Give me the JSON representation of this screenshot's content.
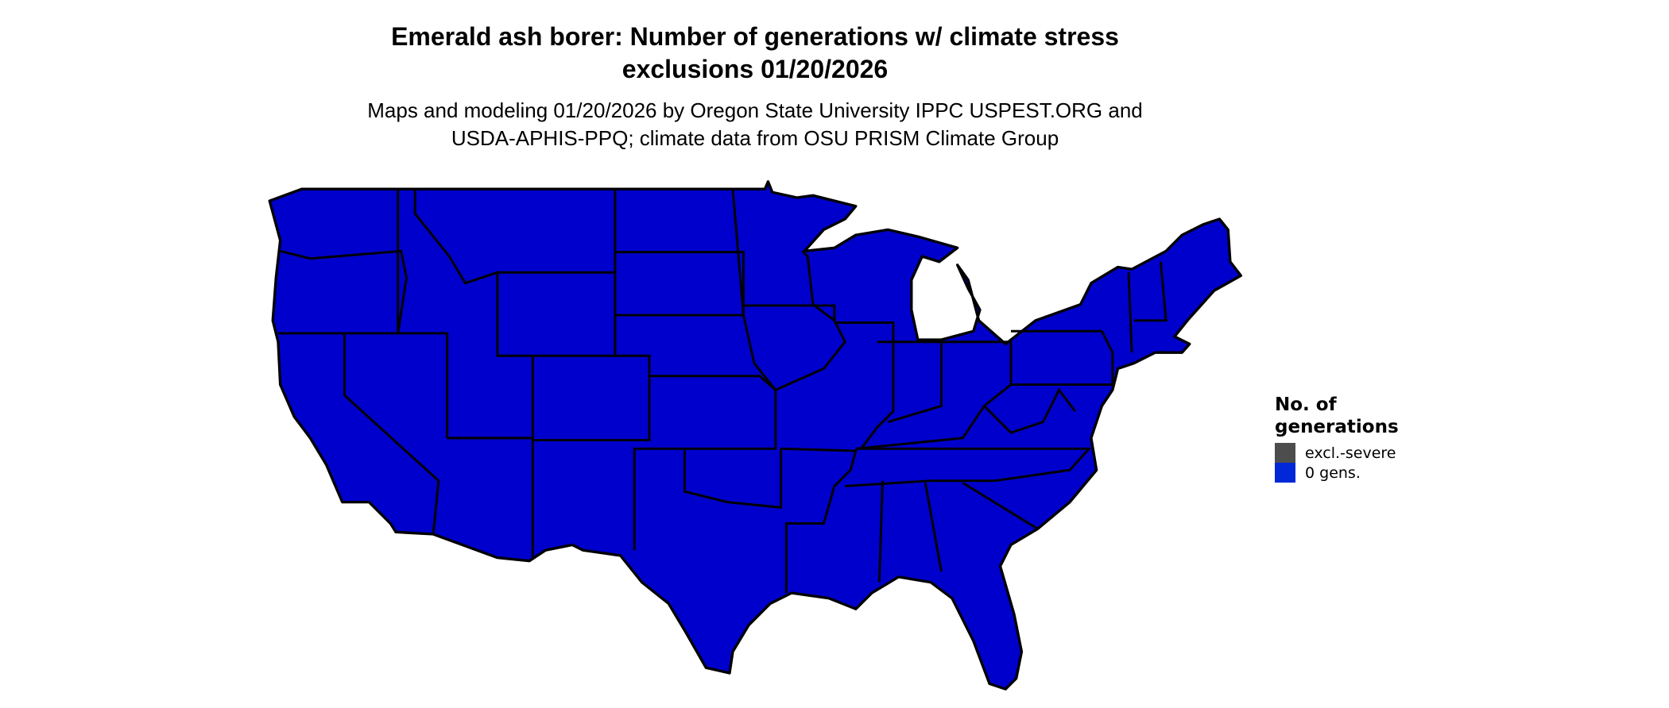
{
  "title": {
    "line1": "Emerald ash borer: Number of generations w/ climate stress",
    "line2": "exclusions 01/20/2026"
  },
  "subtitle": {
    "line1": "Maps and modeling 01/20/2026 by Oregon State University IPPC USPEST.ORG and",
    "line2": "USDA-APHIS-PPQ; climate data from OSU PRISM Climate Group"
  },
  "map": {
    "region": "Contiguous United States",
    "fill_category": "0 gens.",
    "fill_color": "#0000cc",
    "border_color": "#000000"
  },
  "legend": {
    "title_line1": "No. of",
    "title_line2": "generations",
    "items": [
      {
        "label": "excl.-severe",
        "color": "#4d4d4d"
      },
      {
        "label": "0 gens.",
        "color": "#0028d8"
      }
    ]
  }
}
